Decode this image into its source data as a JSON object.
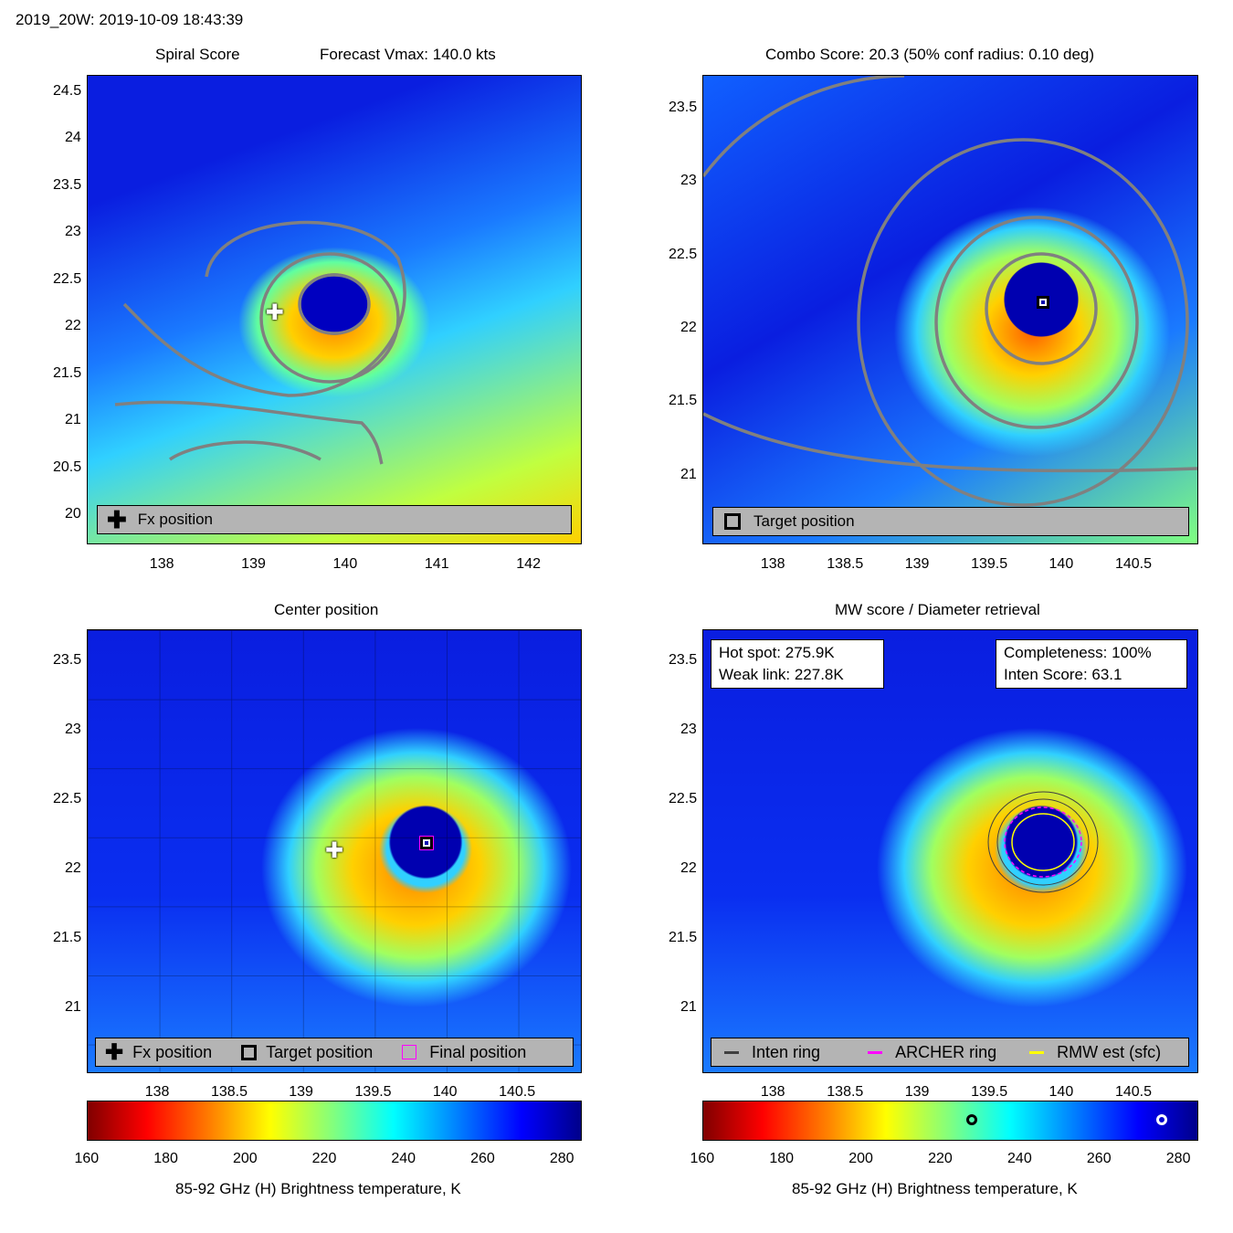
{
  "header": {
    "title": "2019_20W: 2019-10-09 18:43:39"
  },
  "colors": {
    "contour": "#808080",
    "archer_ring": "#ff00ff",
    "rmw_ring": "#ffff00",
    "inten_ring": "#404040"
  },
  "chart_data": [
    {
      "type": "heatmap",
      "id": "spiral",
      "title_left": "Spiral Score",
      "title_right": "Forecast Vmax: 140.0 kts",
      "xlim": [
        137.18,
        142.58
      ],
      "ylim": [
        19.69,
        24.68
      ],
      "xticks": [
        "138",
        "139",
        "140",
        "141",
        "142"
      ],
      "yticks": [
        "20",
        "20.5",
        "21",
        "21.5",
        "22",
        "22.5",
        "23",
        "23.5",
        "24",
        "24.5"
      ],
      "markers": [
        {
          "label": "Fx position",
          "x": 139.23,
          "y": 22.15,
          "symbol": "plus"
        }
      ],
      "legend": [
        "Fx position"
      ]
    },
    {
      "type": "heatmap",
      "id": "combo",
      "title": "Combo Score: 20.3  (50% conf radius: 0.10 deg)",
      "xlim": [
        137.51,
        140.95
      ],
      "ylim": [
        20.53,
        23.73
      ],
      "xticks": [
        "138",
        "138.5",
        "139",
        "139.5",
        "140",
        "140.5"
      ],
      "yticks": [
        "21",
        "21.5",
        "22",
        "22.5",
        "23",
        "23.5"
      ],
      "markers": [
        {
          "label": "Target position",
          "x": 139.87,
          "y": 22.18,
          "symbol": "square"
        }
      ],
      "legend": [
        "Target position"
      ]
    },
    {
      "type": "heatmap",
      "id": "center",
      "title": "Center position",
      "xlim": [
        137.51,
        140.95
      ],
      "ylim": [
        20.53,
        23.73
      ],
      "xticks": [
        "138",
        "138.5",
        "139",
        "139.5",
        "140",
        "140.5"
      ],
      "yticks": [
        "21",
        "21.5",
        "22",
        "22.5",
        "23",
        "23.5"
      ],
      "markers": [
        {
          "label": "Fx position",
          "x": 139.23,
          "y": 22.13
        },
        {
          "label": "Target position",
          "x": 139.87,
          "y": 22.19
        },
        {
          "label": "Final position",
          "x": 139.87,
          "y": 22.19
        }
      ],
      "legend": [
        "Fx position",
        "Target position",
        "Final position"
      ],
      "colorbar": {
        "label": "85-92 GHz (H) Brightness temperature, K",
        "range": [
          160,
          285
        ],
        "ticks": [
          "160",
          "180",
          "200",
          "220",
          "240",
          "260",
          "280"
        ]
      }
    },
    {
      "type": "heatmap",
      "id": "mw",
      "title": "MW score / Diameter retrieval",
      "xlim": [
        137.51,
        140.95
      ],
      "ylim": [
        20.53,
        23.73
      ],
      "xticks": [
        "138",
        "138.5",
        "139",
        "139.5",
        "140",
        "140.5"
      ],
      "yticks": [
        "21",
        "21.5",
        "22",
        "22.5",
        "23",
        "23.5"
      ],
      "info_left": [
        "Hot spot: 275.9K",
        "Weak link: 227.8K"
      ],
      "info_right": [
        "Completeness: 100%",
        "Inten Score: 63.1"
      ],
      "legend": [
        "Inten ring",
        "ARCHER ring",
        "RMW est (sfc)"
      ],
      "colorbar": {
        "label": "85-92 GHz (H) Brightness temperature, K",
        "range": [
          160,
          285
        ],
        "ticks": [
          "160",
          "180",
          "200",
          "220",
          "240",
          "260",
          "280"
        ],
        "markers": [
          227.8,
          275.9
        ]
      }
    }
  ]
}
